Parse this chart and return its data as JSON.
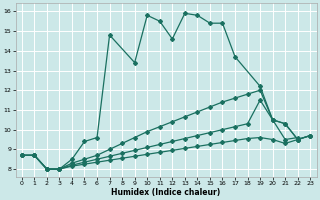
{
  "xlabel": "Humidex (Indice chaleur)",
  "background_color": "#cce8e8",
  "grid_color": "#b0d8d8",
  "line_color": "#1a7060",
  "xlim": [
    -0.5,
    23.5
  ],
  "ylim": [
    7.6,
    16.4
  ],
  "yticks": [
    8,
    9,
    10,
    11,
    12,
    13,
    14,
    15,
    16
  ],
  "xticks": [
    0,
    1,
    2,
    3,
    4,
    5,
    6,
    7,
    8,
    9,
    10,
    11,
    12,
    13,
    14,
    15,
    16,
    17,
    18,
    19,
    20,
    21,
    22,
    23
  ],
  "s1_x": [
    0,
    1,
    2,
    3,
    4,
    5,
    6,
    7,
    9,
    10,
    11,
    12,
    13,
    14,
    15,
    16,
    17,
    19,
    20,
    21,
    22
  ],
  "s1_y": [
    8.7,
    8.7,
    8.0,
    8.0,
    8.5,
    9.4,
    9.6,
    14.8,
    13.4,
    15.8,
    15.5,
    14.6,
    15.9,
    15.8,
    15.4,
    15.4,
    13.7,
    12.2,
    10.5,
    9.5,
    9.6
  ],
  "s2_x": [
    0,
    1,
    2,
    3,
    4,
    5,
    6,
    7,
    8,
    9,
    10,
    11,
    12,
    13,
    14,
    15,
    16,
    17,
    18,
    19,
    20,
    21,
    22,
    23
  ],
  "s2_y": [
    8.7,
    8.7,
    8.0,
    8.0,
    8.3,
    8.5,
    8.7,
    9.0,
    9.3,
    9.6,
    9.9,
    10.15,
    10.4,
    10.65,
    10.9,
    11.15,
    11.4,
    11.6,
    11.8,
    12.0,
    10.5,
    10.3,
    9.5,
    9.7
  ],
  "s3_x": [
    0,
    1,
    2,
    3,
    4,
    5,
    6,
    7,
    8,
    9,
    10,
    11,
    12,
    13,
    14,
    15,
    16,
    17,
    18,
    19,
    20,
    21,
    22,
    23
  ],
  "s3_y": [
    8.7,
    8.7,
    8.0,
    8.0,
    8.2,
    8.35,
    8.5,
    8.65,
    8.8,
    8.95,
    9.1,
    9.25,
    9.4,
    9.55,
    9.7,
    9.85,
    10.0,
    10.15,
    10.3,
    11.5,
    10.5,
    10.3,
    9.5,
    9.7
  ],
  "s4_x": [
    0,
    1,
    2,
    3,
    4,
    5,
    6,
    7,
    8,
    9,
    10,
    11,
    12,
    13,
    14,
    15,
    16,
    17,
    18,
    19,
    20,
    21,
    22,
    23
  ],
  "s4_y": [
    8.7,
    8.7,
    8.0,
    8.0,
    8.15,
    8.25,
    8.35,
    8.45,
    8.55,
    8.65,
    8.75,
    8.85,
    8.95,
    9.05,
    9.15,
    9.25,
    9.35,
    9.45,
    9.55,
    9.6,
    9.5,
    9.3,
    9.5,
    9.7
  ]
}
